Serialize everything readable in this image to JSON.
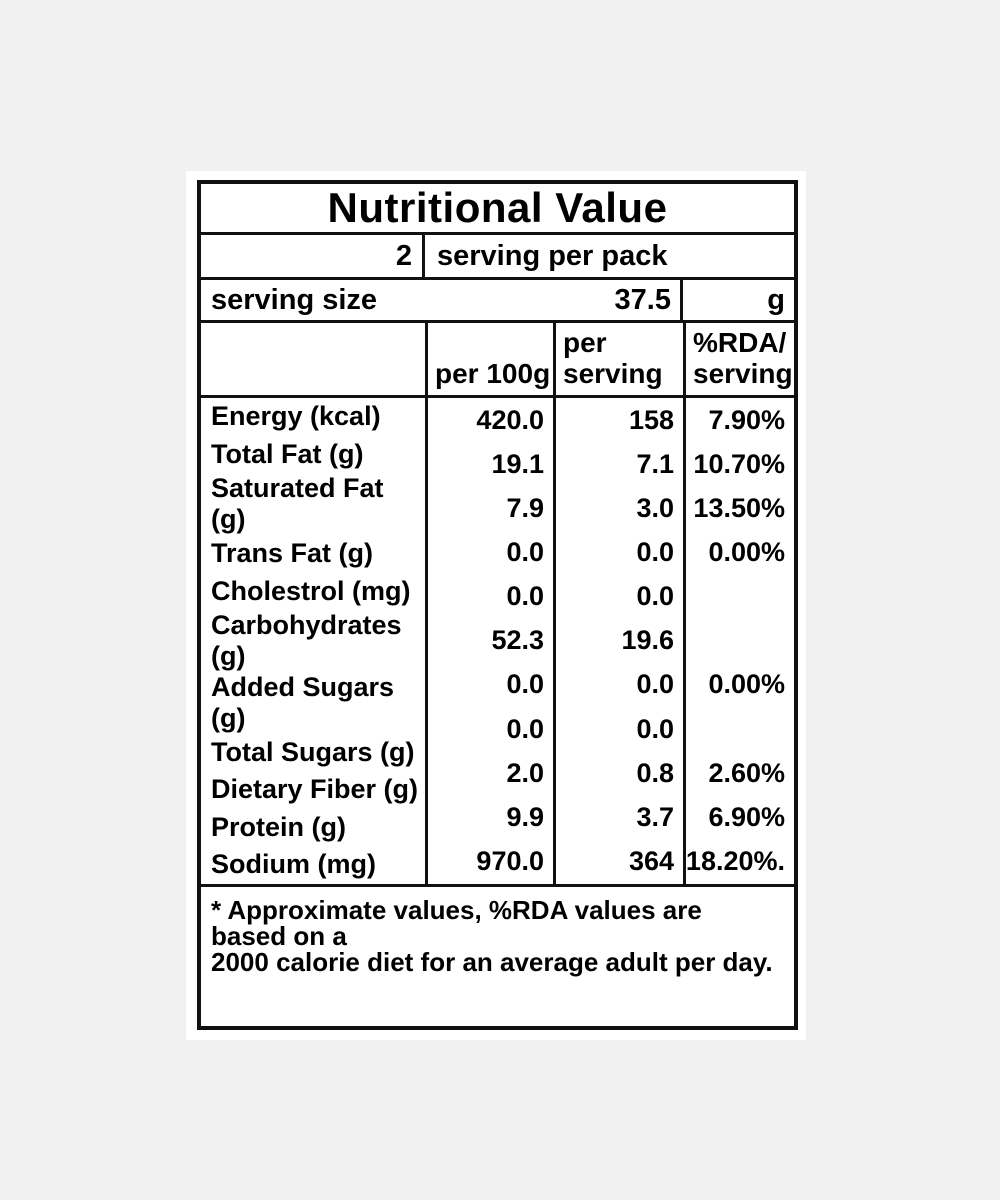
{
  "page": {
    "background_color": "#f1f1f1",
    "card_background": "#ffffff",
    "border_color": "#111111",
    "text_color": "#000000"
  },
  "label": {
    "title": "Nutritional Value",
    "servings_per_pack": {
      "value": "2",
      "text": "serving per pack"
    },
    "serving_size": {
      "label": "serving size",
      "value": "37.5",
      "unit": "g"
    },
    "columns": {
      "per_100g": "per 100g",
      "per_serving_line1": "per",
      "per_serving_line2": "serving",
      "rda_line1": "%RDA/",
      "rda_line2": "serving"
    },
    "rows": [
      {
        "nutrient": "Energy (kcal)",
        "per_100g": "420.0",
        "per_serving": "158",
        "rda": "7.90%"
      },
      {
        "nutrient": "Total Fat (g)",
        "per_100g": "19.1",
        "per_serving": "7.1",
        "rda": "10.70%"
      },
      {
        "nutrient": "Saturated Fat (g)",
        "per_100g": "7.9",
        "per_serving": "3.0",
        "rda": "13.50%"
      },
      {
        "nutrient": "Trans Fat (g)",
        "per_100g": "0.0",
        "per_serving": "0.0",
        "rda": "0.00%"
      },
      {
        "nutrient": "Cholestrol (mg)",
        "per_100g": "0.0",
        "per_serving": "0.0",
        "rda": ""
      },
      {
        "nutrient": "Carbohydrates (g)",
        "per_100g": "52.3",
        "per_serving": "19.6",
        "rda": ""
      },
      {
        "nutrient": "Added Sugars (g)",
        "per_100g": "0.0",
        "per_serving": "0.0",
        "rda": "0.00%"
      },
      {
        "nutrient": "Total Sugars (g)",
        "per_100g": "0.0",
        "per_serving": "0.0",
        "rda": ""
      },
      {
        "nutrient": "Dietary Fiber (g)",
        "per_100g": "2.0",
        "per_serving": "0.8",
        "rda": "2.60%"
      },
      {
        "nutrient": "Protein (g)",
        "per_100g": "9.9",
        "per_serving": "3.7",
        "rda": "6.90%"
      },
      {
        "nutrient": "Sodium (mg)",
        "per_100g": "970.0",
        "per_serving": "364",
        "rda": "18.20%."
      }
    ],
    "footnote_line1": "* Approximate values, %RDA values are based on a",
    "footnote_line2": "2000 calorie diet for an average adult per day."
  }
}
